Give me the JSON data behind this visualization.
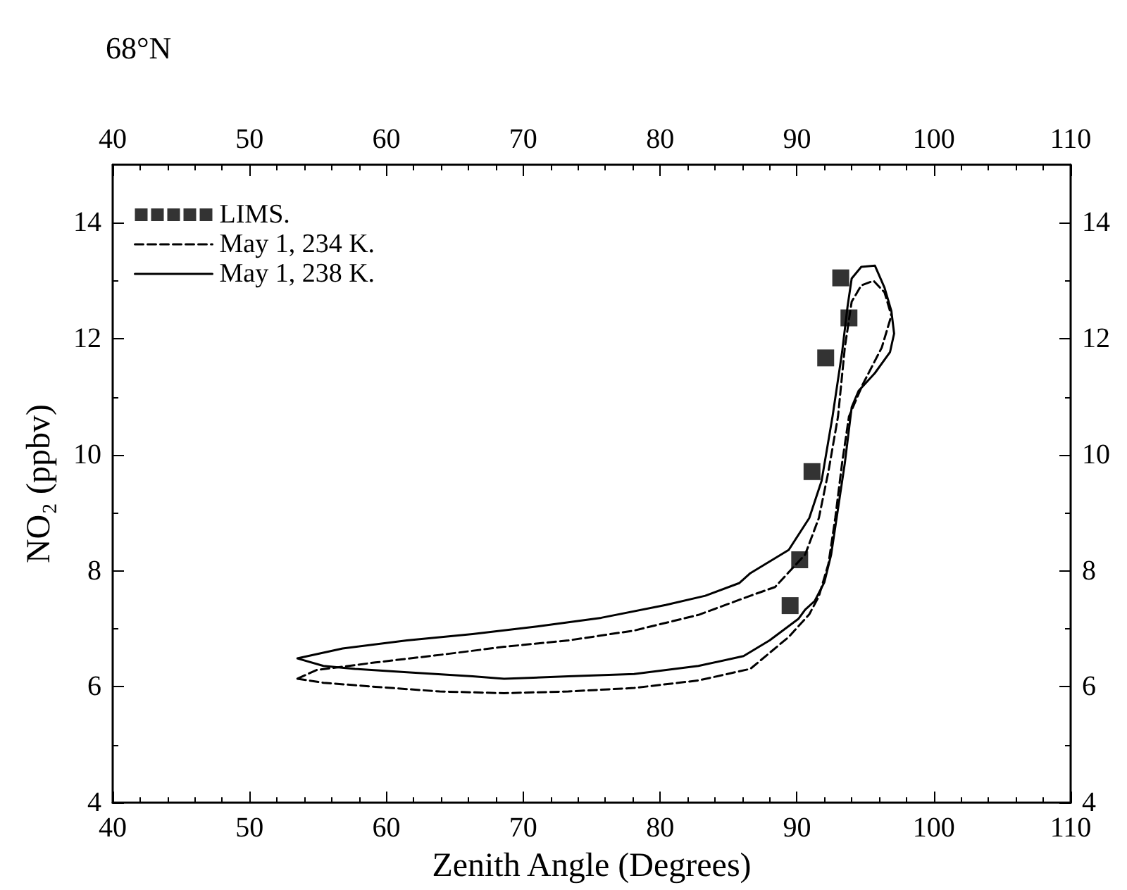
{
  "chart_data": {
    "type": "line",
    "title": "68°N",
    "xlabel": "Zenith Angle (Degrees)",
    "ylabel": "NO₂ (ppbv)",
    "xlim": [
      40,
      110
    ],
    "xticks": [
      40,
      50,
      60,
      70,
      80,
      90,
      100,
      110
    ],
    "x2lim": [
      40,
      110
    ],
    "x2ticks": [
      40,
      50,
      60,
      70,
      80,
      90,
      100,
      110
    ],
    "ylim": [
      4,
      15
    ],
    "yticks": [
      4,
      6,
      8,
      10,
      12,
      14
    ],
    "y2lim": [
      4,
      15
    ],
    "y2ticks": [
      4,
      6,
      8,
      10,
      12,
      14
    ],
    "grid": false,
    "legend": "top left",
    "series": [
      {
        "name": "LIMS.",
        "type": "scatter",
        "marker": "square",
        "color": "#000000",
        "x": [
          93.2,
          93.8,
          92.1,
          91.1,
          90.2,
          89.5
        ],
        "values": [
          13.05,
          12.36,
          11.67,
          9.71,
          8.19,
          7.4
        ]
      },
      {
        "name": "May 1, 234 K.",
        "type": "line",
        "line_style": "dashed",
        "color": "#000000",
        "x": [
          53.5,
          54.9,
          59.2,
          63.9,
          68.6,
          73.3,
          78.1,
          82.8,
          86.6,
          88.4,
          90.6,
          91.6,
          92.3,
          93.0,
          93.5,
          94.0,
          94.7,
          95.6,
          96.4,
          96.9,
          null,
          53.5,
          55.4,
          59.2,
          63.9,
          68.6,
          73.3,
          78.1,
          82.8,
          86.6,
          89.4,
          90.9,
          91.6,
          92.3,
          92.8,
          93.3,
          93.8,
          94.8,
          96.2,
          96.9
        ],
        "values": [
          6.14,
          6.29,
          6.42,
          6.55,
          6.69,
          6.8,
          6.97,
          7.24,
          7.57,
          7.72,
          8.28,
          8.91,
          9.71,
          10.66,
          11.85,
          12.64,
          12.92,
          13.0,
          12.8,
          12.4,
          null,
          6.14,
          6.07,
          6.0,
          5.92,
          5.89,
          5.92,
          5.98,
          6.11,
          6.31,
          6.86,
          7.25,
          7.56,
          8.12,
          8.91,
          9.86,
          10.66,
          11.21,
          11.85,
          12.4
        ]
      },
      {
        "name": "May 1, 238 K.",
        "type": "line",
        "line_style": "solid",
        "color": "#000000",
        "x": [
          53.5,
          56.8,
          61.5,
          66.3,
          71.0,
          75.7,
          80.4,
          83.3,
          85.8,
          86.6,
          89.4,
          90.9,
          91.8,
          92.6,
          93.3,
          93.7,
          94.0,
          94.7,
          95.7,
          96.4,
          96.9,
          97.1,
          null,
          53.5,
          55.4,
          57.7,
          61.5,
          66.3,
          68.6,
          73.3,
          78.1,
          82.8,
          86.1,
          88.0,
          90.1,
          90.6,
          91.3,
          92.0,
          92.5,
          93.0,
          93.5,
          94.0,
          94.5,
          95.7,
          96.8,
          97.1
        ],
        "values": [
          6.49,
          6.66,
          6.8,
          6.91,
          7.04,
          7.19,
          7.41,
          7.57,
          7.79,
          7.96,
          8.36,
          8.91,
          9.55,
          10.66,
          11.77,
          12.56,
          13.04,
          13.24,
          13.26,
          12.88,
          12.48,
          12.09,
          null,
          6.49,
          6.36,
          6.31,
          6.25,
          6.18,
          6.14,
          6.18,
          6.22,
          6.36,
          6.53,
          6.8,
          7.17,
          7.33,
          7.48,
          7.8,
          8.28,
          9.07,
          9.86,
          10.82,
          11.1,
          11.41,
          11.77,
          12.09
        ]
      }
    ]
  }
}
